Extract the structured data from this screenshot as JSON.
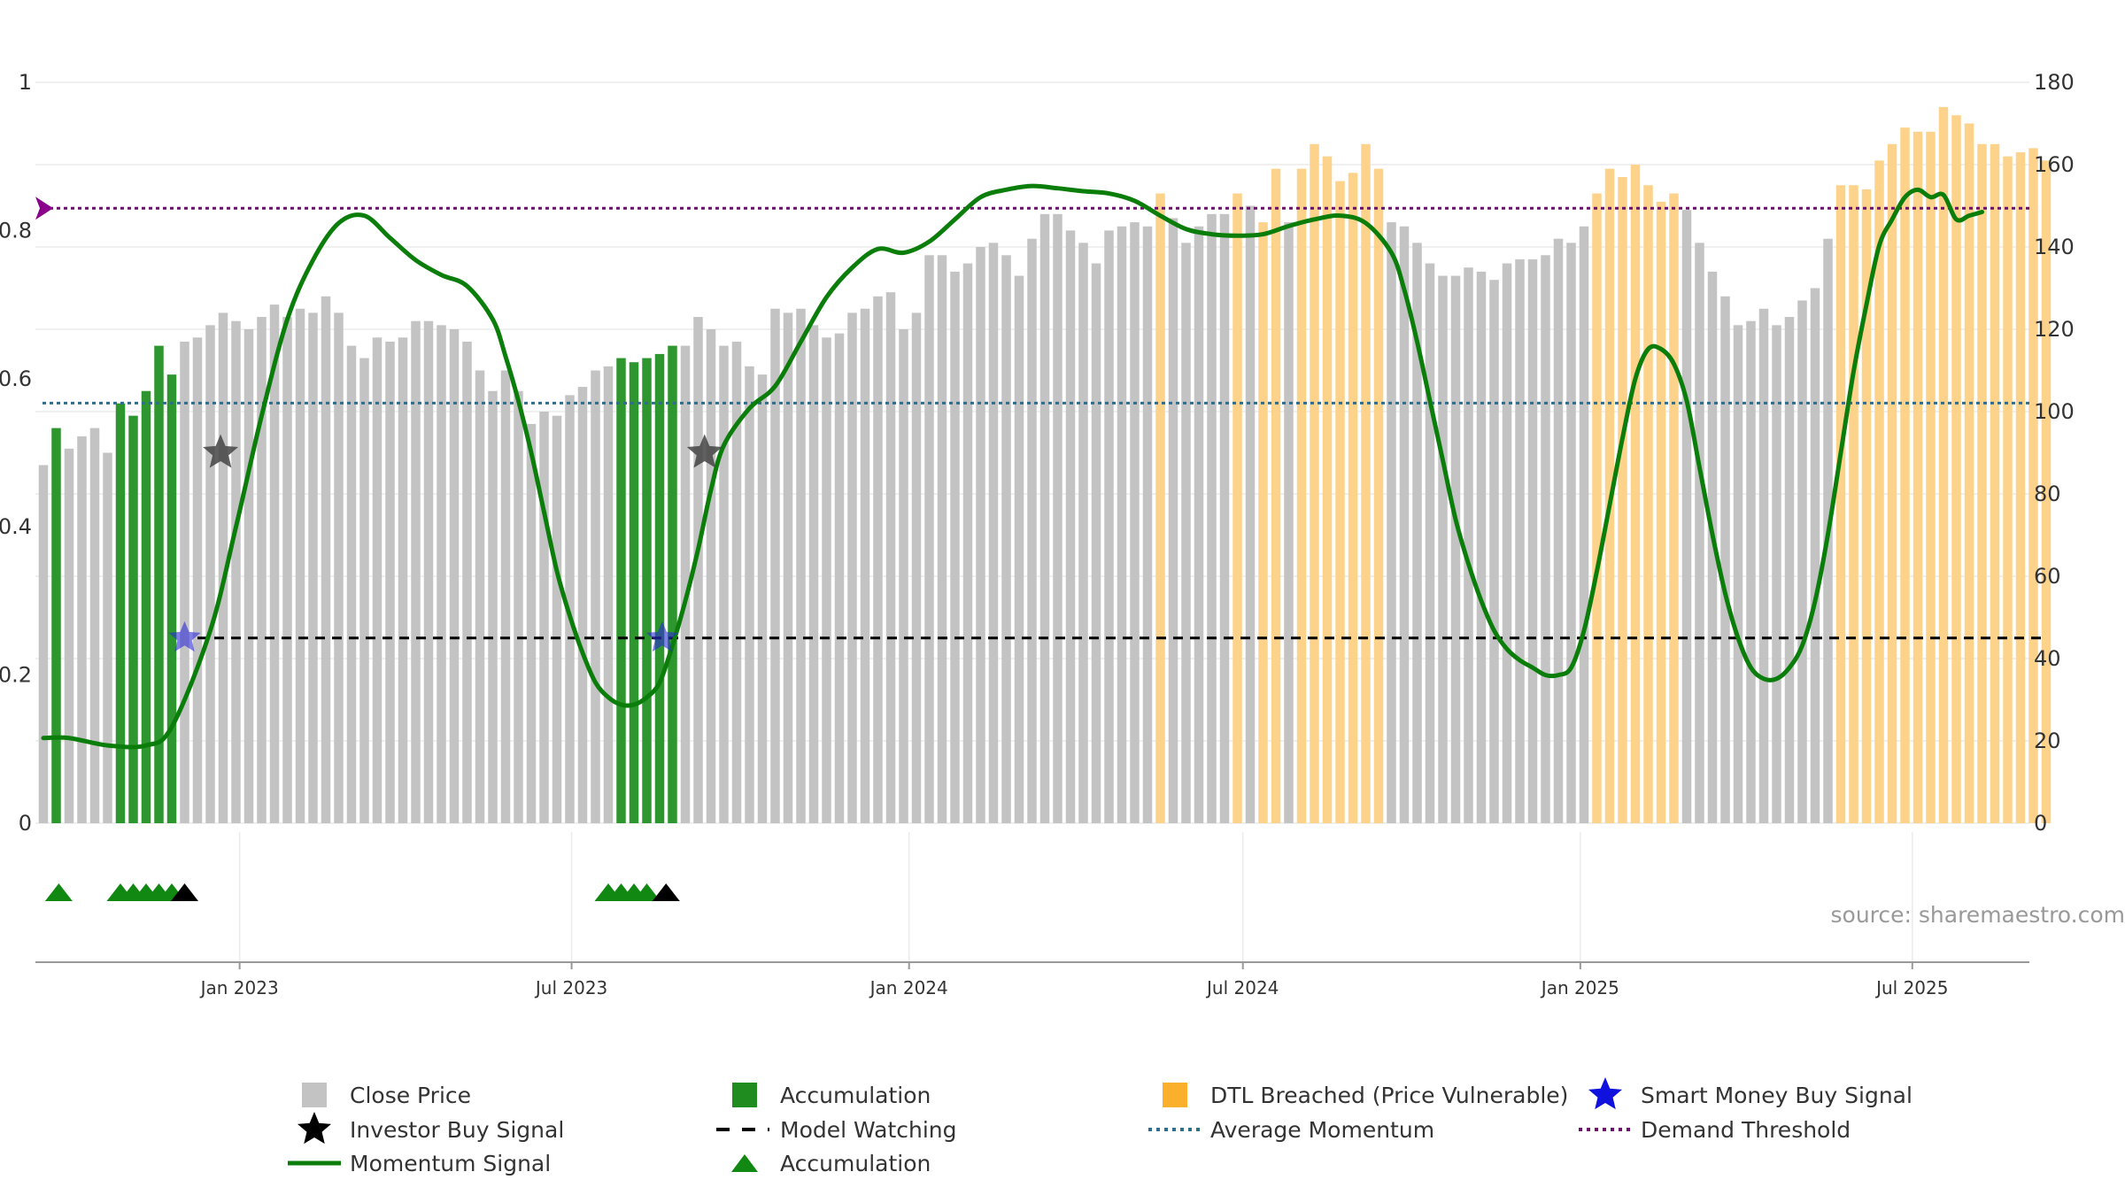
{
  "chart_data": {
    "type": "bar",
    "source": "source: sharemaestro.com",
    "left_axis": {
      "range": [
        0,
        1
      ],
      "ticks": [
        0,
        0.2,
        0.4,
        0.6,
        0.8,
        1
      ],
      "tick_labels": [
        "0",
        "0.2",
        "0.4",
        "0.6",
        "0.8",
        "1"
      ]
    },
    "right_axis": {
      "range": [
        0,
        180
      ],
      "ticks": [
        0,
        20,
        40,
        60,
        80,
        100,
        120,
        140,
        160,
        180
      ],
      "tick_labels": [
        "0",
        "20",
        "40",
        "60",
        "80",
        "100",
        "120",
        "140",
        "160",
        "180"
      ]
    },
    "date_axis": {
      "first_bar": "2022-09-16",
      "bar_interval_days": 7,
      "labels": [
        {
          "text": "Jan 2023",
          "date": "2023-01-01"
        },
        {
          "text": "Jul 2023",
          "date": "2023-07-01"
        },
        {
          "text": "Jan 2024",
          "date": "2024-01-01"
        },
        {
          "text": "Jul 2024",
          "date": "2024-07-01"
        },
        {
          "text": "Jan 2025",
          "date": "2025-01-01"
        },
        {
          "text": "Jul 2025",
          "date": "2025-07-01"
        }
      ]
    },
    "bar_categories": {
      "close": {
        "label": "Close Price",
        "color": "#c3c3c3"
      },
      "accumulation": {
        "label": "Accumulation",
        "color": "#2e962e"
      },
      "dtl": {
        "label": "DTL Breached (Price Vulnerable)",
        "color": "#fdd28a"
      }
    },
    "close_price": [
      {
        "value": 87,
        "cat": "close"
      },
      {
        "value": 96,
        "cat": "accumulation"
      },
      {
        "value": 91,
        "cat": "close"
      },
      {
        "value": 94,
        "cat": "close"
      },
      {
        "value": 96,
        "cat": "close"
      },
      {
        "value": 90,
        "cat": "close"
      },
      {
        "value": 102,
        "cat": "accumulation"
      },
      {
        "value": 99,
        "cat": "accumulation"
      },
      {
        "value": 105,
        "cat": "accumulation"
      },
      {
        "value": 116,
        "cat": "accumulation"
      },
      {
        "value": 109,
        "cat": "accumulation"
      },
      {
        "value": 117,
        "cat": "close"
      },
      {
        "value": 118,
        "cat": "close"
      },
      {
        "value": 121,
        "cat": "close"
      },
      {
        "value": 124,
        "cat": "close"
      },
      {
        "value": 122,
        "cat": "close"
      },
      {
        "value": 120,
        "cat": "close"
      },
      {
        "value": 123,
        "cat": "close"
      },
      {
        "value": 126,
        "cat": "close"
      },
      {
        "value": 123,
        "cat": "close"
      },
      {
        "value": 125,
        "cat": "close"
      },
      {
        "value": 124,
        "cat": "close"
      },
      {
        "value": 128,
        "cat": "close"
      },
      {
        "value": 124,
        "cat": "close"
      },
      {
        "value": 116,
        "cat": "close"
      },
      {
        "value": 113,
        "cat": "close"
      },
      {
        "value": 118,
        "cat": "close"
      },
      {
        "value": 117,
        "cat": "close"
      },
      {
        "value": 118,
        "cat": "close"
      },
      {
        "value": 122,
        "cat": "close"
      },
      {
        "value": 122,
        "cat": "close"
      },
      {
        "value": 121,
        "cat": "close"
      },
      {
        "value": 120,
        "cat": "close"
      },
      {
        "value": 117,
        "cat": "close"
      },
      {
        "value": 110,
        "cat": "close"
      },
      {
        "value": 105,
        "cat": "close"
      },
      {
        "value": 110,
        "cat": "close"
      },
      {
        "value": 105,
        "cat": "close"
      },
      {
        "value": 97,
        "cat": "close"
      },
      {
        "value": 100,
        "cat": "close"
      },
      {
        "value": 99,
        "cat": "close"
      },
      {
        "value": 104,
        "cat": "close"
      },
      {
        "value": 106,
        "cat": "close"
      },
      {
        "value": 110,
        "cat": "close"
      },
      {
        "value": 111,
        "cat": "close"
      },
      {
        "value": 113,
        "cat": "accumulation"
      },
      {
        "value": 112,
        "cat": "accumulation"
      },
      {
        "value": 113,
        "cat": "accumulation"
      },
      {
        "value": 114,
        "cat": "accumulation"
      },
      {
        "value": 116,
        "cat": "accumulation"
      },
      {
        "value": 116,
        "cat": "close"
      },
      {
        "value": 123,
        "cat": "close"
      },
      {
        "value": 120,
        "cat": "close"
      },
      {
        "value": 116,
        "cat": "close"
      },
      {
        "value": 117,
        "cat": "close"
      },
      {
        "value": 111,
        "cat": "close"
      },
      {
        "value": 109,
        "cat": "close"
      },
      {
        "value": 125,
        "cat": "close"
      },
      {
        "value": 124,
        "cat": "close"
      },
      {
        "value": 125,
        "cat": "close"
      },
      {
        "value": 121,
        "cat": "close"
      },
      {
        "value": 118,
        "cat": "close"
      },
      {
        "value": 119,
        "cat": "close"
      },
      {
        "value": 124,
        "cat": "close"
      },
      {
        "value": 125,
        "cat": "close"
      },
      {
        "value": 128,
        "cat": "close"
      },
      {
        "value": 129,
        "cat": "close"
      },
      {
        "value": 120,
        "cat": "close"
      },
      {
        "value": 124,
        "cat": "close"
      },
      {
        "value": 138,
        "cat": "close"
      },
      {
        "value": 138,
        "cat": "close"
      },
      {
        "value": 134,
        "cat": "close"
      },
      {
        "value": 136,
        "cat": "close"
      },
      {
        "value": 140,
        "cat": "close"
      },
      {
        "value": 141,
        "cat": "close"
      },
      {
        "value": 138,
        "cat": "close"
      },
      {
        "value": 133,
        "cat": "close"
      },
      {
        "value": 142,
        "cat": "close"
      },
      {
        "value": 148,
        "cat": "close"
      },
      {
        "value": 148,
        "cat": "close"
      },
      {
        "value": 144,
        "cat": "close"
      },
      {
        "value": 141,
        "cat": "close"
      },
      {
        "value": 136,
        "cat": "close"
      },
      {
        "value": 144,
        "cat": "close"
      },
      {
        "value": 145,
        "cat": "close"
      },
      {
        "value": 146,
        "cat": "close"
      },
      {
        "value": 145,
        "cat": "close"
      },
      {
        "value": 153,
        "cat": "dtl"
      },
      {
        "value": 147,
        "cat": "close"
      },
      {
        "value": 141,
        "cat": "close"
      },
      {
        "value": 145,
        "cat": "close"
      },
      {
        "value": 148,
        "cat": "close"
      },
      {
        "value": 148,
        "cat": "close"
      },
      {
        "value": 153,
        "cat": "dtl"
      },
      {
        "value": 150,
        "cat": "close"
      },
      {
        "value": 146,
        "cat": "dtl"
      },
      {
        "value": 159,
        "cat": "dtl"
      },
      {
        "value": 146,
        "cat": "close"
      },
      {
        "value": 159,
        "cat": "dtl"
      },
      {
        "value": 165,
        "cat": "dtl"
      },
      {
        "value": 162,
        "cat": "dtl"
      },
      {
        "value": 156,
        "cat": "dtl"
      },
      {
        "value": 158,
        "cat": "dtl"
      },
      {
        "value": 165,
        "cat": "dtl"
      },
      {
        "value": 159,
        "cat": "dtl"
      },
      {
        "value": 146,
        "cat": "close"
      },
      {
        "value": 145,
        "cat": "close"
      },
      {
        "value": 141,
        "cat": "close"
      },
      {
        "value": 136,
        "cat": "close"
      },
      {
        "value": 133,
        "cat": "close"
      },
      {
        "value": 133,
        "cat": "close"
      },
      {
        "value": 135,
        "cat": "close"
      },
      {
        "value": 134,
        "cat": "close"
      },
      {
        "value": 132,
        "cat": "close"
      },
      {
        "value": 136,
        "cat": "close"
      },
      {
        "value": 137,
        "cat": "close"
      },
      {
        "value": 137,
        "cat": "close"
      },
      {
        "value": 138,
        "cat": "close"
      },
      {
        "value": 142,
        "cat": "close"
      },
      {
        "value": 141,
        "cat": "close"
      },
      {
        "value": 145,
        "cat": "close"
      },
      {
        "value": 153,
        "cat": "dtl"
      },
      {
        "value": 159,
        "cat": "dtl"
      },
      {
        "value": 157,
        "cat": "dtl"
      },
      {
        "value": 160,
        "cat": "dtl"
      },
      {
        "value": 155,
        "cat": "dtl"
      },
      {
        "value": 151,
        "cat": "dtl"
      },
      {
        "value": 153,
        "cat": "dtl"
      },
      {
        "value": 149,
        "cat": "close"
      },
      {
        "value": 141,
        "cat": "close"
      },
      {
        "value": 134,
        "cat": "close"
      },
      {
        "value": 128,
        "cat": "close"
      },
      {
        "value": 121,
        "cat": "close"
      },
      {
        "value": 122,
        "cat": "close"
      },
      {
        "value": 125,
        "cat": "close"
      },
      {
        "value": 121,
        "cat": "close"
      },
      {
        "value": 123,
        "cat": "close"
      },
      {
        "value": 127,
        "cat": "close"
      },
      {
        "value": 130,
        "cat": "close"
      },
      {
        "value": 142,
        "cat": "close"
      },
      {
        "value": 155,
        "cat": "dtl"
      },
      {
        "value": 155,
        "cat": "dtl"
      },
      {
        "value": 154,
        "cat": "dtl"
      },
      {
        "value": 161,
        "cat": "dtl"
      },
      {
        "value": 165,
        "cat": "dtl"
      },
      {
        "value": 169,
        "cat": "dtl"
      },
      {
        "value": 168,
        "cat": "dtl"
      },
      {
        "value": 168,
        "cat": "dtl"
      },
      {
        "value": 174,
        "cat": "dtl"
      },
      {
        "value": 172,
        "cat": "dtl"
      },
      {
        "value": 170,
        "cat": "dtl"
      },
      {
        "value": 165,
        "cat": "dtl"
      },
      {
        "value": 165,
        "cat": "dtl"
      },
      {
        "value": 162,
        "cat": "dtl"
      },
      {
        "value": 163,
        "cat": "dtl"
      },
      {
        "value": 164,
        "cat": "dtl"
      },
      {
        "value": 161,
        "cat": "dtl"
      }
    ],
    "momentum_signal": {
      "label": "Momentum Signal",
      "color": "#0a7d0a",
      "points": [
        [
          0,
          0.115
        ],
        [
          2,
          0.115
        ],
        [
          5,
          0.105
        ],
        [
          8,
          0.105
        ],
        [
          10,
          0.13
        ],
        [
          13,
          0.26
        ],
        [
          15,
          0.4
        ],
        [
          17,
          0.55
        ],
        [
          19,
          0.68
        ],
        [
          21,
          0.76
        ],
        [
          23,
          0.81
        ],
        [
          25,
          0.82
        ],
        [
          27,
          0.79
        ],
        [
          29,
          0.76
        ],
        [
          31,
          0.74
        ],
        [
          33,
          0.725
        ],
        [
          35,
          0.68
        ],
        [
          36,
          0.63
        ],
        [
          37,
          0.57
        ],
        [
          38,
          0.5
        ],
        [
          39,
          0.42
        ],
        [
          40,
          0.34
        ],
        [
          41,
          0.28
        ],
        [
          42,
          0.23
        ],
        [
          43,
          0.19
        ],
        [
          44,
          0.17
        ],
        [
          45,
          0.16
        ],
        [
          46,
          0.16
        ],
        [
          47,
          0.17
        ],
        [
          48,
          0.19
        ],
        [
          49,
          0.24
        ],
        [
          50,
          0.3
        ],
        [
          51,
          0.37
        ],
        [
          52,
          0.45
        ],
        [
          53,
          0.51
        ],
        [
          55,
          0.56
        ],
        [
          57,
          0.59
        ],
        [
          59,
          0.65
        ],
        [
          61,
          0.71
        ],
        [
          63,
          0.75
        ],
        [
          65,
          0.775
        ],
        [
          67,
          0.77
        ],
        [
          69,
          0.785
        ],
        [
          71,
          0.815
        ],
        [
          73,
          0.845
        ],
        [
          75,
          0.855
        ],
        [
          77,
          0.86
        ],
        [
          79,
          0.857
        ],
        [
          81,
          0.853
        ],
        [
          83,
          0.85
        ],
        [
          85,
          0.84
        ],
        [
          87,
          0.82
        ],
        [
          89,
          0.802
        ],
        [
          91,
          0.795
        ],
        [
          93,
          0.793
        ],
        [
          95,
          0.795
        ],
        [
          97,
          0.806
        ],
        [
          99,
          0.815
        ],
        [
          101,
          0.82
        ],
        [
          103,
          0.81
        ],
        [
          105,
          0.77
        ],
        [
          106,
          0.72
        ],
        [
          107,
          0.65
        ],
        [
          108,
          0.57
        ],
        [
          109,
          0.49
        ],
        [
          110,
          0.41
        ],
        [
          111,
          0.35
        ],
        [
          112,
          0.3
        ],
        [
          113,
          0.26
        ],
        [
          114,
          0.235
        ],
        [
          115,
          0.22
        ],
        [
          116,
          0.21
        ],
        [
          117,
          0.2
        ],
        [
          118,
          0.2
        ],
        [
          119,
          0.21
        ],
        [
          120,
          0.26
        ],
        [
          121,
          0.34
        ],
        [
          122,
          0.43
        ],
        [
          123,
          0.52
        ],
        [
          124,
          0.6
        ],
        [
          125,
          0.64
        ],
        [
          126,
          0.64
        ],
        [
          127,
          0.62
        ],
        [
          128,
          0.57
        ],
        [
          129,
          0.48
        ],
        [
          130,
          0.39
        ],
        [
          131,
          0.31
        ],
        [
          132,
          0.25
        ],
        [
          133,
          0.21
        ],
        [
          134,
          0.195
        ],
        [
          135,
          0.195
        ],
        [
          136,
          0.21
        ],
        [
          137,
          0.24
        ],
        [
          138,
          0.3
        ],
        [
          139,
          0.39
        ],
        [
          140,
          0.5
        ],
        [
          141,
          0.61
        ],
        [
          142,
          0.7
        ],
        [
          143,
          0.78
        ],
        [
          144,
          0.815
        ],
        [
          145,
          0.845
        ],
        [
          146,
          0.855
        ],
        [
          147,
          0.845
        ],
        [
          148,
          0.848
        ],
        [
          149,
          0.815
        ],
        [
          150,
          0.82
        ],
        [
          151,
          0.825
        ]
      ]
    },
    "average_momentum": {
      "label": "Average Momentum",
      "value": 0.567,
      "color": "#2d6e8e"
    },
    "demand_threshold": {
      "label": "Demand Threshold",
      "value": 0.83,
      "color": "#6b0f6b"
    },
    "model_watching": {
      "label": "Model Watching",
      "value": 0.25,
      "from_index": 12,
      "color": "#000000"
    },
    "investor_buy_signals": {
      "label": "Investor Buy Signal",
      "points": [
        [
          13.8,
          0.5
        ],
        [
          51.5,
          0.5
        ]
      ],
      "color": "#444444"
    },
    "smart_money_buy_signals": {
      "label": "Smart Money Buy Signal",
      "points": [
        [
          11,
          0.25
        ],
        [
          48.2,
          0.25
        ]
      ],
      "color": "#2b2bd6"
    },
    "accumulation_markers": {
      "label": "Accumulation",
      "green": [
        1.2,
        6,
        7,
        8,
        9,
        10,
        44,
        45,
        46,
        47
      ],
      "black": [
        11,
        48.5
      ],
      "color": "#118811"
    },
    "legend": [
      {
        "kind": "square",
        "color": "#c3c3c3",
        "label": "Close Price"
      },
      {
        "kind": "square",
        "color": "#1f8c1f",
        "label": "Accumulation"
      },
      {
        "kind": "square",
        "color": "#fbb02d",
        "label": "DTL Breached (Price Vulnerable)"
      },
      {
        "kind": "star",
        "color": "#1111dd",
        "label": "Smart Money Buy Signal"
      },
      {
        "kind": "star",
        "color": "#000000",
        "label": "Investor Buy Signal"
      },
      {
        "kind": "dash",
        "color": "#000000",
        "label": "Model Watching"
      },
      {
        "kind": "dot",
        "color": "#2d6e8e",
        "label": "Average Momentum"
      },
      {
        "kind": "dot",
        "color": "#6b0f6b",
        "label": "Demand Threshold"
      },
      {
        "kind": "line",
        "color": "#0a7d0a",
        "label": "Momentum Signal"
      },
      {
        "kind": "triangle",
        "color": "#118811",
        "label": "Accumulation"
      }
    ]
  }
}
